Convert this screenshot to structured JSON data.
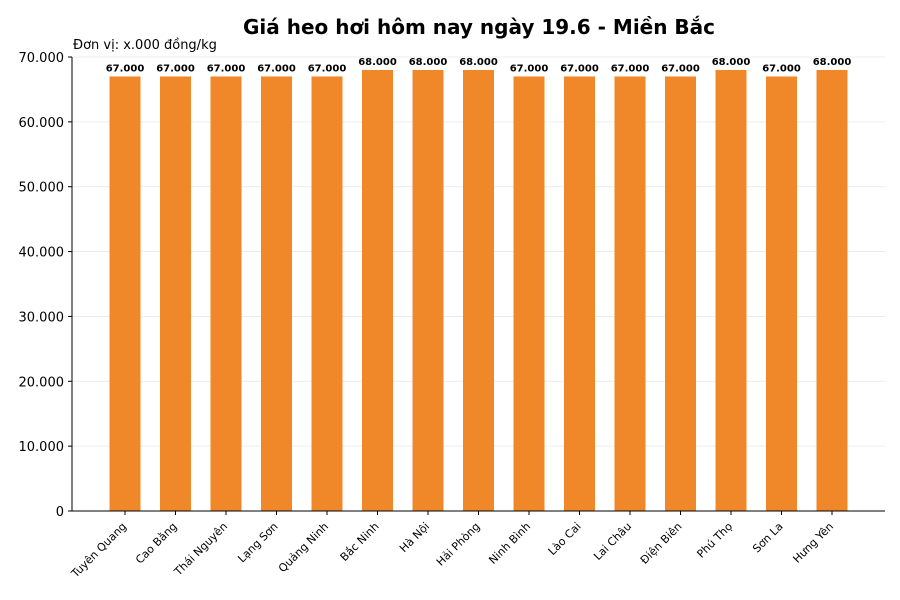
{
  "chart_data": {
    "type": "bar",
    "title": "Giá heo hơi hôm nay ngày 19.6 - Miền Bắc",
    "unit_label": "Đơn vị: x.000 đồng/kg",
    "xlabel": "",
    "ylabel": "",
    "categories": [
      "Tuyên Quang",
      "Cao Bằng",
      "Thái Nguyên",
      "Lạng Sơn",
      "Quảng Ninh",
      "Bắc Ninh",
      "Hà Nội",
      "Hải Phòng",
      "Ninh Bình",
      "Lào Cai",
      "Lai Châu",
      "Điện Biên",
      "Phú Thọ",
      "Sơn La",
      "Hưng Yên"
    ],
    "values": [
      67000,
      67000,
      67000,
      67000,
      67000,
      68000,
      68000,
      68000,
      67000,
      67000,
      67000,
      67000,
      68000,
      67000,
      68000
    ],
    "value_labels": [
      "67.000",
      "67.000",
      "67.000",
      "67.000",
      "67.000",
      "68.000",
      "68.000",
      "68.000",
      "67.000",
      "67.000",
      "67.000",
      "67.000",
      "68.000",
      "67.000",
      "68.000"
    ],
    "ylim": [
      0,
      70000
    ],
    "yticks": [
      0,
      10000,
      20000,
      30000,
      40000,
      50000,
      60000,
      70000
    ],
    "ytick_labels": [
      "0",
      "10.000",
      "20.000",
      "30.000",
      "40.000",
      "50.000",
      "60.000",
      "70.000"
    ],
    "grid": true,
    "bar_color": "#f0882a"
  }
}
